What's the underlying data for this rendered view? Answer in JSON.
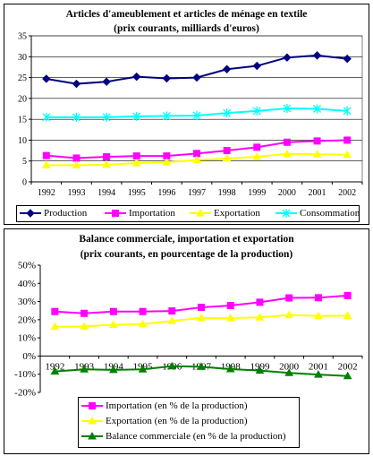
{
  "chart_data": [
    {
      "type": "line",
      "title": "Articles d'ameublement et articles de ménage en textile",
      "subtitle": "(prix courants, milliards d'euros)",
      "x": [
        "1992",
        "1993",
        "1994",
        "1995",
        "1996",
        "1997",
        "1998",
        "1999",
        "2000",
        "2001",
        "2002"
      ],
      "ylim": [
        0,
        35
      ],
      "yticks": [
        0,
        5,
        10,
        15,
        20,
        25,
        30,
        35
      ],
      "grid": true,
      "legend_position": "bottom",
      "series": [
        {
          "name": "Production",
          "color": "#000080",
          "marker": "diamond",
          "values": [
            24.7,
            23.5,
            24.0,
            25.2,
            24.8,
            25.0,
            27.0,
            27.8,
            29.8,
            30.3,
            29.5
          ]
        },
        {
          "name": "Importation",
          "color": "#ff00ff",
          "marker": "square",
          "values": [
            6.3,
            5.7,
            6.0,
            6.2,
            6.2,
            6.8,
            7.5,
            8.3,
            9.5,
            9.8,
            10.0
          ]
        },
        {
          "name": "Exportation",
          "color": "#ffff00",
          "marker": "triangle",
          "values": [
            4.0,
            4.0,
            4.1,
            4.5,
            4.7,
            5.2,
            5.6,
            6.0,
            6.7,
            6.6,
            6.5
          ]
        },
        {
          "name": "Consommation",
          "color": "#00ffff",
          "marker": "x",
          "values": [
            15.5,
            15.5,
            15.5,
            15.7,
            15.8,
            15.9,
            16.5,
            17.0,
            17.6,
            17.5,
            17.0
          ]
        }
      ]
    },
    {
      "type": "line",
      "title": "Balance commerciale, importation et exportation",
      "subtitle": "(prix courants, en pourcentage de la production)",
      "x": [
        "1992",
        "1993",
        "1994",
        "1995",
        "1996",
        "1997",
        "1998",
        "1999",
        "2000",
        "2001",
        "2002"
      ],
      "ylim": [
        -20,
        50
      ],
      "yticks": [
        -20,
        -10,
        0,
        10,
        20,
        30,
        40,
        50
      ],
      "ytick_labels": [
        "-20%",
        "-10%",
        "0%",
        "10%",
        "20%",
        "30%",
        "40%",
        "50%"
      ],
      "grid": false,
      "legend_position": "bottom",
      "series": [
        {
          "name": "Importation (en % de la production)",
          "color": "#ff00ff",
          "marker": "square",
          "values": [
            24.5,
            23.5,
            24.5,
            24.5,
            24.8,
            26.8,
            27.8,
            29.6,
            32.0,
            32.1,
            33.3
          ]
        },
        {
          "name": "Exportation (en % de la production)",
          "color": "#ffff00",
          "marker": "triangle",
          "values": [
            16.2,
            16.3,
            17.2,
            17.6,
            19.3,
            21.0,
            20.9,
            21.3,
            22.6,
            22.1,
            22.2
          ]
        },
        {
          "name": "Balance commerciale (en % de la production)",
          "color": "#008000",
          "marker": "triangle",
          "values": [
            -8.5,
            -7.3,
            -7.6,
            -7.3,
            -5.6,
            -5.9,
            -7.2,
            -8.0,
            -9.3,
            -10.2,
            -11.0
          ]
        }
      ]
    }
  ]
}
